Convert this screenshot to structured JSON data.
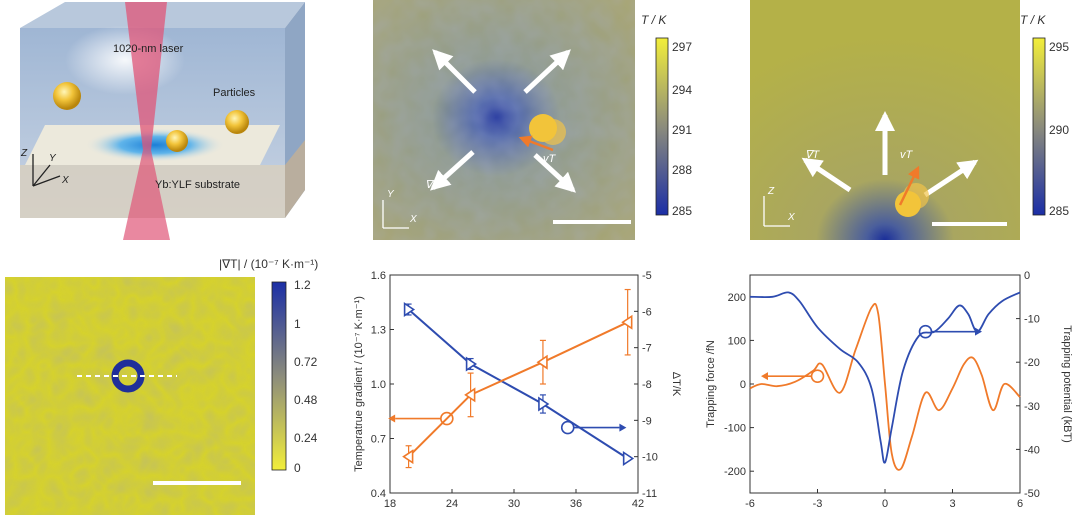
{
  "panel_a": {
    "laser_label": "1020-nm laser",
    "particles_label": "Particles",
    "substrate_label": "Yb:YLF substrate",
    "axis": {
      "z": "Z",
      "y": "Y",
      "x": "X"
    }
  },
  "panel_b": {
    "colorbar_title": "T / K",
    "colorbar_ticks": [
      "297",
      "294",
      "291",
      "288",
      "285"
    ],
    "grad_label": "∇T",
    "vel_label": "vT",
    "axis": {
      "y": "Y",
      "x": "X"
    }
  },
  "panel_c": {
    "colorbar_title": "T / K",
    "colorbar_ticks": [
      "295",
      "290",
      "285"
    ],
    "grad_label": "∇T",
    "vel_label": "vT",
    "axis": {
      "z": "Z",
      "x": "X"
    }
  },
  "panel_d": {
    "colorbar_title": "|∇T| / (10⁻⁷ K·m⁻¹)",
    "colorbar_ticks": [
      "1.2",
      "1",
      "0.72",
      "0.48",
      "0.24",
      "0"
    ]
  },
  "colors": {
    "blue": "#2e4cb0",
    "orange": "#f07a2a",
    "yellow": "#d4d22e"
  },
  "chart_data": [
    {
      "type": "line",
      "xlabel": "",
      "ylabel": "Temperatrue gradient / (10⁻⁷ K·m⁻¹)",
      "y2label": "ΔT/K",
      "xlim": [
        18,
        42
      ],
      "ylim": [
        0.4,
        1.6
      ],
      "y2lim": [
        -11,
        -5
      ],
      "xticks": [
        "18",
        "24",
        "30",
        "36",
        "42"
      ],
      "yticks": [
        "0.4",
        "0.7",
        "1.0",
        "1.3",
        "1.6"
      ],
      "y2ticks": [
        "-11",
        "-10",
        "-9",
        "-8",
        "-7",
        "-6",
        "-5"
      ],
      "series": [
        {
          "name": "Temperature gradient",
          "axis": "left",
          "color": "#2e4cb0",
          "x": [
            19.8,
            25.8,
            32.8,
            41
          ],
          "y": [
            1.41,
            1.11,
            0.89,
            0.59
          ],
          "err": [
            0.03,
            0.03,
            0.05,
            0.01
          ]
        },
        {
          "name": "ΔT",
          "axis": "right",
          "color": "#f07a2a",
          "x": [
            19.8,
            25.8,
            32.8,
            41
          ],
          "y": [
            -10.0,
            -8.3,
            -7.4,
            -6.3
          ],
          "err": [
            0.3,
            0.6,
            0.6,
            0.9
          ]
        }
      ]
    },
    {
      "type": "line",
      "xlabel": "",
      "ylabel": "Trapping force /fN",
      "y2label": "Trapping potential (kBT)",
      "xlim": [
        -6,
        6
      ],
      "ylim": [
        -250,
        250
      ],
      "y2lim": [
        -50,
        0
      ],
      "xticks": [
        "-6",
        "-3",
        "0",
        "3",
        "6"
      ],
      "yticks": [
        "200",
        "100",
        "0",
        "-100",
        "-200"
      ],
      "y2ticks": [
        "0",
        "-10",
        "-20",
        "-30",
        "-40",
        "-50"
      ],
      "series": [
        {
          "name": "Trapping force",
          "axis": "left",
          "color": "#f07a2a",
          "x": [
            -6,
            -5.5,
            -4.8,
            -4.0,
            -3.2,
            -2.8,
            -2.0,
            -1.3,
            -0.6,
            -0.3,
            0,
            0.3,
            0.7,
            1.2,
            1.8,
            2.4,
            3.0,
            3.5,
            3.9,
            4.3,
            4.8,
            5.3,
            6
          ],
          "y": [
            -10,
            0,
            -5,
            5,
            30,
            45,
            -20,
            80,
            175,
            160,
            0,
            -160,
            -195,
            -120,
            -20,
            -60,
            -10,
            45,
            60,
            20,
            -60,
            0,
            -30
          ]
        },
        {
          "name": "Trapping potential",
          "axis": "right",
          "color": "#2e4cb0",
          "x": [
            -6,
            -5,
            -4.3,
            -3.8,
            -3,
            -2,
            -1.2,
            -0.6,
            -0.2,
            0,
            0.3,
            0.8,
            1.5,
            2.2,
            2.8,
            3.3,
            3.7,
            4.1,
            4.6,
            5.2,
            6
          ],
          "y": [
            -5,
            -5,
            -4,
            -6,
            -12,
            -17,
            -20,
            -26,
            -38,
            -43,
            -35,
            -22,
            -14,
            -13,
            -10,
            -7,
            -9,
            -13,
            -9,
            -6,
            -4
          ]
        }
      ]
    }
  ]
}
